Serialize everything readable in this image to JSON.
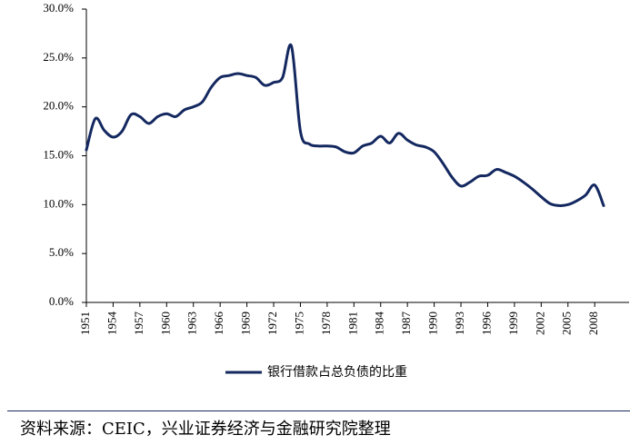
{
  "chart_data": {
    "type": "line",
    "title": "",
    "xlabel": "",
    "ylabel": "",
    "ylim": [
      0,
      30
    ],
    "y_ticks": [
      "0.0%",
      "5.0%",
      "10.0%",
      "15.0%",
      "20.0%",
      "25.0%",
      "30.0%"
    ],
    "x_tick_labels": [
      "1951",
      "1954",
      "1957",
      "1960",
      "1963",
      "1966",
      "1969",
      "1972",
      "1975",
      "1978",
      "1981",
      "1984",
      "1987",
      "1990",
      "1993",
      "1996",
      "1999",
      "2002",
      "2005",
      "2008"
    ],
    "x_tick_years": [
      1951,
      1954,
      1957,
      1960,
      1963,
      1966,
      1969,
      1972,
      1975,
      1978,
      1981,
      1984,
      1987,
      1990,
      1993,
      1996,
      1999,
      2002,
      2005,
      2008
    ],
    "xlim": [
      1951,
      2009
    ],
    "grid": false,
    "legend_position": "bottom-center",
    "line_color": "#142860",
    "series": [
      {
        "name": "银行借款占总负债的比重",
        "x": [
          1951,
          1952,
          1953,
          1954,
          1955,
          1956,
          1957,
          1958,
          1959,
          1960,
          1961,
          1962,
          1963,
          1964,
          1965,
          1966,
          1967,
          1968,
          1969,
          1970,
          1971,
          1972,
          1973,
          1974,
          1975,
          1976,
          1977,
          1978,
          1979,
          1980,
          1981,
          1982,
          1983,
          1984,
          1985,
          1986,
          1987,
          1988,
          1989,
          1990,
          1991,
          1992,
          1993,
          1994,
          1995,
          1996,
          1997,
          1998,
          1999,
          2000,
          2001,
          2002,
          2003,
          2004,
          2005,
          2006,
          2007,
          2008,
          2009
        ],
        "values": [
          15.6,
          18.8,
          17.6,
          16.9,
          17.5,
          19.2,
          19.0,
          18.3,
          19.0,
          19.3,
          19.0,
          19.7,
          20.0,
          20.5,
          22.0,
          23.0,
          23.2,
          23.4,
          23.2,
          23.0,
          22.2,
          22.5,
          23.0,
          26.2,
          17.5,
          16.2,
          16.0,
          16.0,
          15.9,
          15.4,
          15.3,
          16.0,
          16.3,
          17.0,
          16.3,
          17.3,
          16.6,
          16.1,
          15.9,
          15.4,
          14.2,
          12.8,
          11.9,
          12.3,
          12.9,
          13.0,
          13.6,
          13.3,
          12.9,
          12.3,
          11.6,
          10.8,
          10.1,
          9.9,
          10.0,
          10.4,
          11.0,
          12.0,
          9.9
        ]
      }
    ]
  },
  "source_text": "资料来源：CEIC，兴业证券经济与金融研究院整理"
}
